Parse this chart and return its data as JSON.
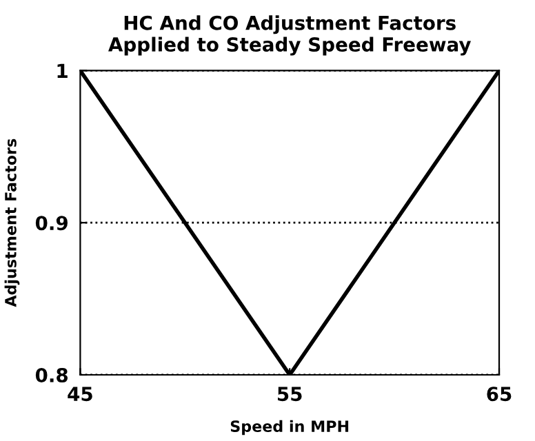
{
  "chart_data": {
    "type": "line",
    "title": "HC And CO Adjustment Factors\nApplied to Steady Speed Freeway",
    "xlabel": "Speed in MPH",
    "ylabel": "Adjustment Factors",
    "x": [
      45,
      55,
      65
    ],
    "series": [
      {
        "color": "#000000",
        "values": [
          1.0,
          0.8,
          1.0
        ]
      }
    ],
    "xlim": [
      45,
      65
    ],
    "xticks": [
      45,
      55,
      65
    ],
    "ylim": [
      0.8,
      1.0
    ],
    "yticks": [
      0.8,
      0.9,
      {
        "value": 1.0,
        "label": "1"
      }
    ],
    "grid": "y",
    "line_style": "solid",
    "marker": "none"
  }
}
